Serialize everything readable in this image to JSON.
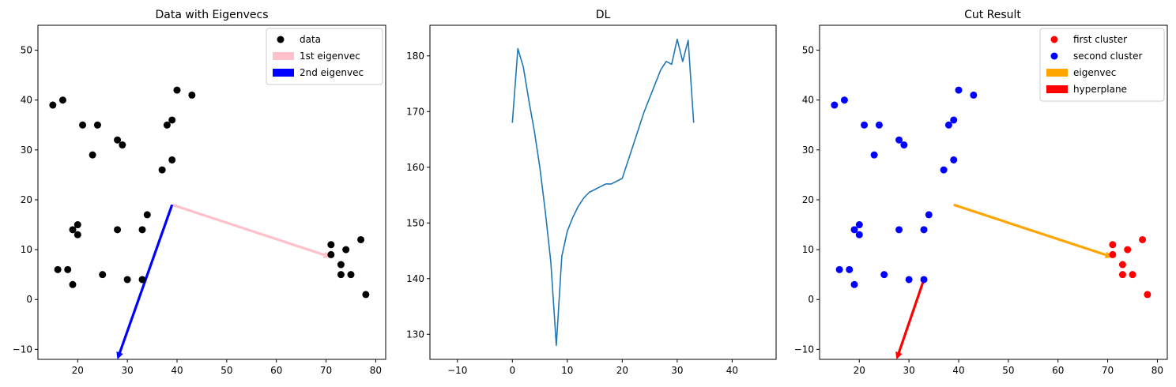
{
  "chart_data": [
    {
      "type": "scatter",
      "title": "Data with Eigenvecs",
      "xlim": [
        12,
        82
      ],
      "ylim": [
        -12,
        55
      ],
      "xticks": [
        20,
        30,
        40,
        50,
        60,
        70,
        80
      ],
      "yticks": [
        -10,
        0,
        10,
        20,
        30,
        40,
        50
      ],
      "legend_position": "upper right",
      "series": [
        {
          "name": "data",
          "kind": "points",
          "color": "#000000",
          "points": [
            [
              15,
              39
            ],
            [
              17,
              40
            ],
            [
              21,
              35
            ],
            [
              24,
              35
            ],
            [
              23,
              29
            ],
            [
              28,
              32
            ],
            [
              29,
              31
            ],
            [
              38,
              35
            ],
            [
              39,
              36
            ],
            [
              40,
              42
            ],
            [
              43,
              41
            ],
            [
              37,
              26
            ],
            [
              39,
              28
            ],
            [
              19,
              14
            ],
            [
              20,
              15
            ],
            [
              20,
              13
            ],
            [
              16,
              6
            ],
            [
              18,
              6
            ],
            [
              19,
              3
            ],
            [
              25,
              5
            ],
            [
              28,
              14
            ],
            [
              30,
              4
            ],
            [
              33,
              4
            ],
            [
              33,
              14
            ],
            [
              34,
              17
            ],
            [
              71,
              11
            ],
            [
              71,
              9
            ],
            [
              73,
              7
            ],
            [
              73,
              5
            ],
            [
              74,
              10
            ],
            [
              75,
              5
            ],
            [
              77,
              12
            ],
            [
              78,
              1
            ]
          ]
        },
        {
          "name": "1st eigenvec",
          "kind": "arrow",
          "color": "#ffc0cb",
          "from": [
            39,
            19
          ],
          "to": [
            71,
            8.5
          ]
        },
        {
          "name": "2nd eigenvec",
          "kind": "arrow",
          "color": "#0000ff",
          "from": [
            39,
            19
          ],
          "to": [
            28,
            -12
          ]
        }
      ]
    },
    {
      "type": "line",
      "title": "DL",
      "xlim": [
        -15,
        48
      ],
      "ylim": [
        125.5,
        185.5
      ],
      "xticks": [
        -10,
        0,
        10,
        20,
        30,
        40
      ],
      "yticks": [
        130,
        140,
        150,
        160,
        170,
        180
      ],
      "series": [
        {
          "name": "",
          "color": "#1f77b4",
          "x": [
            0,
            1,
            2,
            3,
            4,
            5,
            6,
            7,
            8,
            9,
            10,
            11,
            12,
            13,
            14,
            15,
            16,
            17,
            18,
            19,
            20,
            21,
            22,
            23,
            24,
            25,
            26,
            27,
            28,
            29,
            30,
            31,
            32,
            33
          ],
          "y": [
            168,
            181.3,
            178,
            172,
            166.5,
            160,
            152,
            143,
            128,
            144,
            148.5,
            151,
            153,
            154.5,
            155.5,
            156,
            156.5,
            157,
            157,
            157.5,
            158,
            161,
            164,
            167,
            170,
            172.5,
            175,
            177.5,
            179,
            178.5,
            183,
            179,
            182.8,
            168
          ]
        }
      ]
    },
    {
      "type": "scatter",
      "title": "Cut Result",
      "xlim": [
        12,
        82
      ],
      "ylim": [
        -12,
        55
      ],
      "xticks": [
        20,
        30,
        40,
        50,
        60,
        70,
        80
      ],
      "yticks": [
        -10,
        0,
        10,
        20,
        30,
        40,
        50
      ],
      "legend_position": "upper right",
      "series": [
        {
          "name": "first cluster",
          "kind": "points",
          "color": "#ff0000",
          "points": [
            [
              71,
              11
            ],
            [
              71,
              9
            ],
            [
              73,
              7
            ],
            [
              73,
              5
            ],
            [
              74,
              10
            ],
            [
              75,
              5
            ],
            [
              77,
              12
            ],
            [
              78,
              1
            ]
          ]
        },
        {
          "name": "second cluster",
          "kind": "points",
          "color": "#0000ff",
          "points": [
            [
              15,
              39
            ],
            [
              17,
              40
            ],
            [
              21,
              35
            ],
            [
              24,
              35
            ],
            [
              23,
              29
            ],
            [
              28,
              32
            ],
            [
              29,
              31
            ],
            [
              38,
              35
            ],
            [
              39,
              36
            ],
            [
              40,
              42
            ],
            [
              43,
              41
            ],
            [
              37,
              26
            ],
            [
              39,
              28
            ],
            [
              19,
              14
            ],
            [
              20,
              15
            ],
            [
              20,
              13
            ],
            [
              16,
              6
            ],
            [
              18,
              6
            ],
            [
              19,
              3
            ],
            [
              25,
              5
            ],
            [
              28,
              14
            ],
            [
              30,
              4
            ],
            [
              33,
              4
            ],
            [
              33,
              14
            ],
            [
              34,
              17
            ]
          ]
        },
        {
          "name": "eigenvec",
          "kind": "arrow",
          "color": "#ffa500",
          "from": [
            39,
            19
          ],
          "to": [
            71,
            8.5
          ]
        },
        {
          "name": "hyperplane",
          "kind": "arrow",
          "color": "#ff0000",
          "from": [
            33,
            4
          ],
          "to": [
            27.5,
            -12
          ]
        }
      ]
    }
  ]
}
